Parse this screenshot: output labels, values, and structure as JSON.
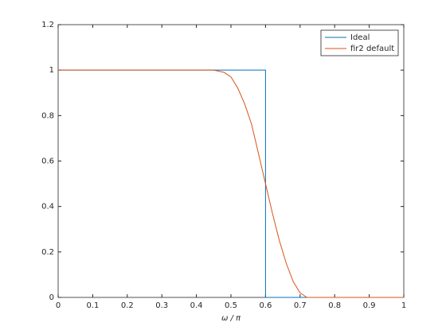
{
  "chart_data": {
    "type": "line",
    "xlabel": "ω / π",
    "xlim": [
      0,
      1
    ],
    "ylim": [
      0,
      1.2
    ],
    "xticks": [
      0,
      0.1,
      0.2,
      0.3,
      0.4,
      0.5,
      0.6,
      0.7,
      0.8,
      0.9,
      1
    ],
    "yticks": [
      0,
      0.2,
      0.4,
      0.6,
      0.8,
      1,
      1.2
    ],
    "grid": false,
    "legend": "upper-right",
    "series": [
      {
        "name": "Ideal",
        "color": "#0072bd",
        "x": [
          0,
          0.6,
          0.6,
          1
        ],
        "values": [
          1,
          1,
          0,
          0
        ]
      },
      {
        "name": "fir2 default",
        "color": "#d95319",
        "x": [
          0,
          0.1,
          0.2,
          0.3,
          0.4,
          0.45,
          0.48,
          0.5,
          0.52,
          0.54,
          0.56,
          0.58,
          0.6,
          0.62,
          0.64,
          0.66,
          0.68,
          0.7,
          0.72,
          0.8,
          0.9,
          1
        ],
        "values": [
          1,
          1,
          1,
          1,
          1,
          1,
          0.99,
          0.97,
          0.92,
          0.85,
          0.76,
          0.63,
          0.5,
          0.37,
          0.25,
          0.15,
          0.07,
          0.02,
          0,
          0,
          0,
          0
        ]
      }
    ]
  }
}
